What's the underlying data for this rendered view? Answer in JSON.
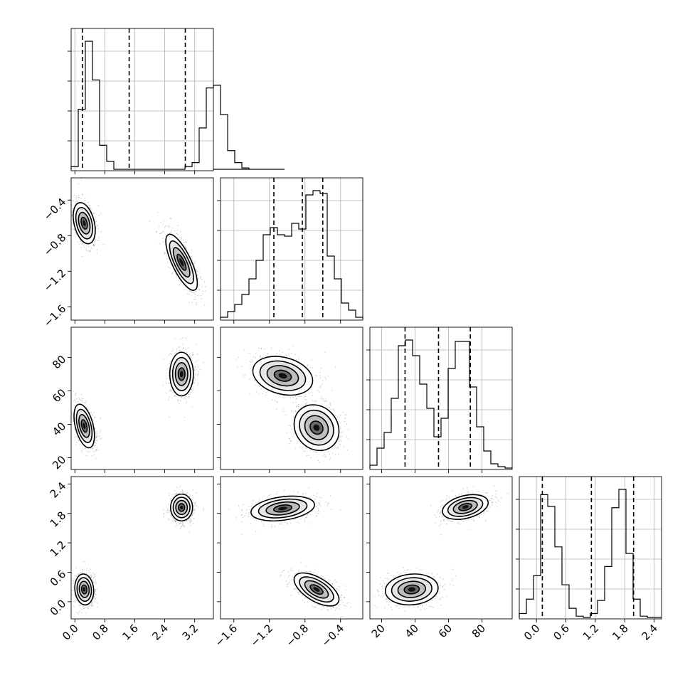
{
  "chart_data": {
    "type": "corner",
    "title": "",
    "n_params": 4,
    "param_labels": [
      "",
      "",
      "",
      ""
    ],
    "grid": true,
    "colors": {
      "ink": "#000000",
      "grid": "#b0b0b0",
      "sample": "#6e6e6e"
    },
    "ranges": [
      [
        -0.1,
        3.7
      ],
      [
        -1.75,
        -0.15
      ],
      [
        13,
        98
      ],
      [
        -0.35,
        2.55
      ]
    ],
    "ticks": [
      {
        "values": [
          0.0,
          0.8,
          1.6,
          2.4,
          3.2
        ],
        "labels": [
          "0.0",
          "0.8",
          "1.6",
          "2.4",
          "3.2"
        ]
      },
      {
        "values": [
          -1.6,
          -1.2,
          -0.8,
          -0.4
        ],
        "labels": [
          "−1.6",
          "−1.2",
          "−0.8",
          "−0.4"
        ]
      },
      {
        "values": [
          20,
          40,
          60,
          80
        ],
        "labels": [
          "20",
          "40",
          "60",
          "80"
        ]
      },
      {
        "values": [
          0.0,
          0.6,
          1.2,
          1.8,
          2.4
        ],
        "labels": [
          "0.0",
          "0.6",
          "1.2",
          "1.8",
          "2.4"
        ]
      }
    ],
    "quantiles": [
      [
        0.2,
        1.45,
        2.95
      ],
      [
        -1.15,
        -0.83,
        -0.6
      ],
      [
        34,
        54,
        73
      ],
      [
        0.12,
        1.12,
        1.98
      ]
    ],
    "histograms": [
      {
        "bin_start": -0.1,
        "bin_width": 0.19,
        "counts": [
          2,
          45,
          96,
          67,
          18,
          6,
          0,
          0,
          0,
          0,
          0,
          0,
          0,
          0,
          0,
          0,
          2,
          5,
          31,
          61,
          63,
          41,
          14,
          5,
          1,
          0,
          0,
          0,
          0,
          0
        ]
      },
      {
        "bin_start": -1.75,
        "bin_width": 0.08,
        "counts": [
          1,
          5,
          10,
          17,
          28,
          41,
          59,
          64,
          59,
          58,
          67,
          63,
          87,
          90,
          88,
          44,
          28,
          11,
          6,
          1
        ]
      },
      {
        "bin_start": 13,
        "bin_width": 4.25,
        "counts": [
          2,
          14,
          25,
          49,
          86,
          90,
          79,
          59,
          42,
          22,
          35,
          70,
          89,
          89,
          57,
          29,
          12,
          3,
          1,
          0
        ]
      },
      {
        "bin_start": -0.35,
        "bin_width": 0.145,
        "counts": [
          3,
          14,
          32,
          94,
          85,
          54,
          25,
          7,
          1,
          0,
          3,
          13,
          39,
          84,
          98,
          49,
          14,
          1,
          0,
          0
        ]
      }
    ],
    "pairs": [
      {
        "x_param": 0,
        "y_param": 1,
        "components": [
          {
            "mean_x": 0.25,
            "mean_y": -0.66,
            "sd_x": 0.14,
            "sd_y": 0.11,
            "corr": -0.35
          },
          {
            "mean_x": 2.85,
            "mean_y": -1.1,
            "sd_x": 0.2,
            "sd_y": 0.15,
            "corr": -0.75
          }
        ]
      },
      {
        "x_param": 0,
        "y_param": 2,
        "components": [
          {
            "mean_x": 0.25,
            "mean_y": 39,
            "sd_x": 0.13,
            "sd_y": 6.2,
            "corr": -0.45
          },
          {
            "mean_x": 2.85,
            "mean_y": 70,
            "sd_x": 0.15,
            "sd_y": 6.2,
            "corr": 0.0
          }
        ]
      },
      {
        "x_param": 1,
        "y_param": 2,
        "components": [
          {
            "mean_x": -1.05,
            "mean_y": 69,
            "sd_x": 0.16,
            "sd_y": 5.5,
            "corr": -0.25
          },
          {
            "mean_x": -0.67,
            "mean_y": 38,
            "sd_x": 0.12,
            "sd_y": 6.5,
            "corr": -0.15
          }
        ]
      },
      {
        "x_param": 0,
        "y_param": 3,
        "components": [
          {
            "mean_x": 0.25,
            "mean_y": 0.25,
            "sd_x": 0.12,
            "sd_y": 0.15,
            "corr": -0.1
          },
          {
            "mean_x": 2.85,
            "mean_y": 1.92,
            "sd_x": 0.14,
            "sd_y": 0.13,
            "corr": 0.0
          }
        ]
      },
      {
        "x_param": 1,
        "y_param": 3,
        "components": [
          {
            "mean_x": -1.05,
            "mean_y": 1.9,
            "sd_x": 0.17,
            "sd_y": 0.12,
            "corr": 0.3
          },
          {
            "mean_x": -0.67,
            "mean_y": 0.25,
            "sd_x": 0.12,
            "sd_y": 0.16,
            "corr": -0.6
          }
        ]
      },
      {
        "x_param": 2,
        "y_param": 3,
        "components": [
          {
            "mean_x": 38,
            "mean_y": 0.25,
            "sd_x": 7.5,
            "sd_y": 0.15,
            "corr": 0.1
          },
          {
            "mean_x": 70,
            "mean_y": 1.93,
            "sd_x": 6.5,
            "sd_y": 0.12,
            "corr": 0.35
          }
        ]
      }
    ],
    "contour_levels_sigma": [
      0.6,
      1.1,
      1.6,
      2.1
    ]
  }
}
